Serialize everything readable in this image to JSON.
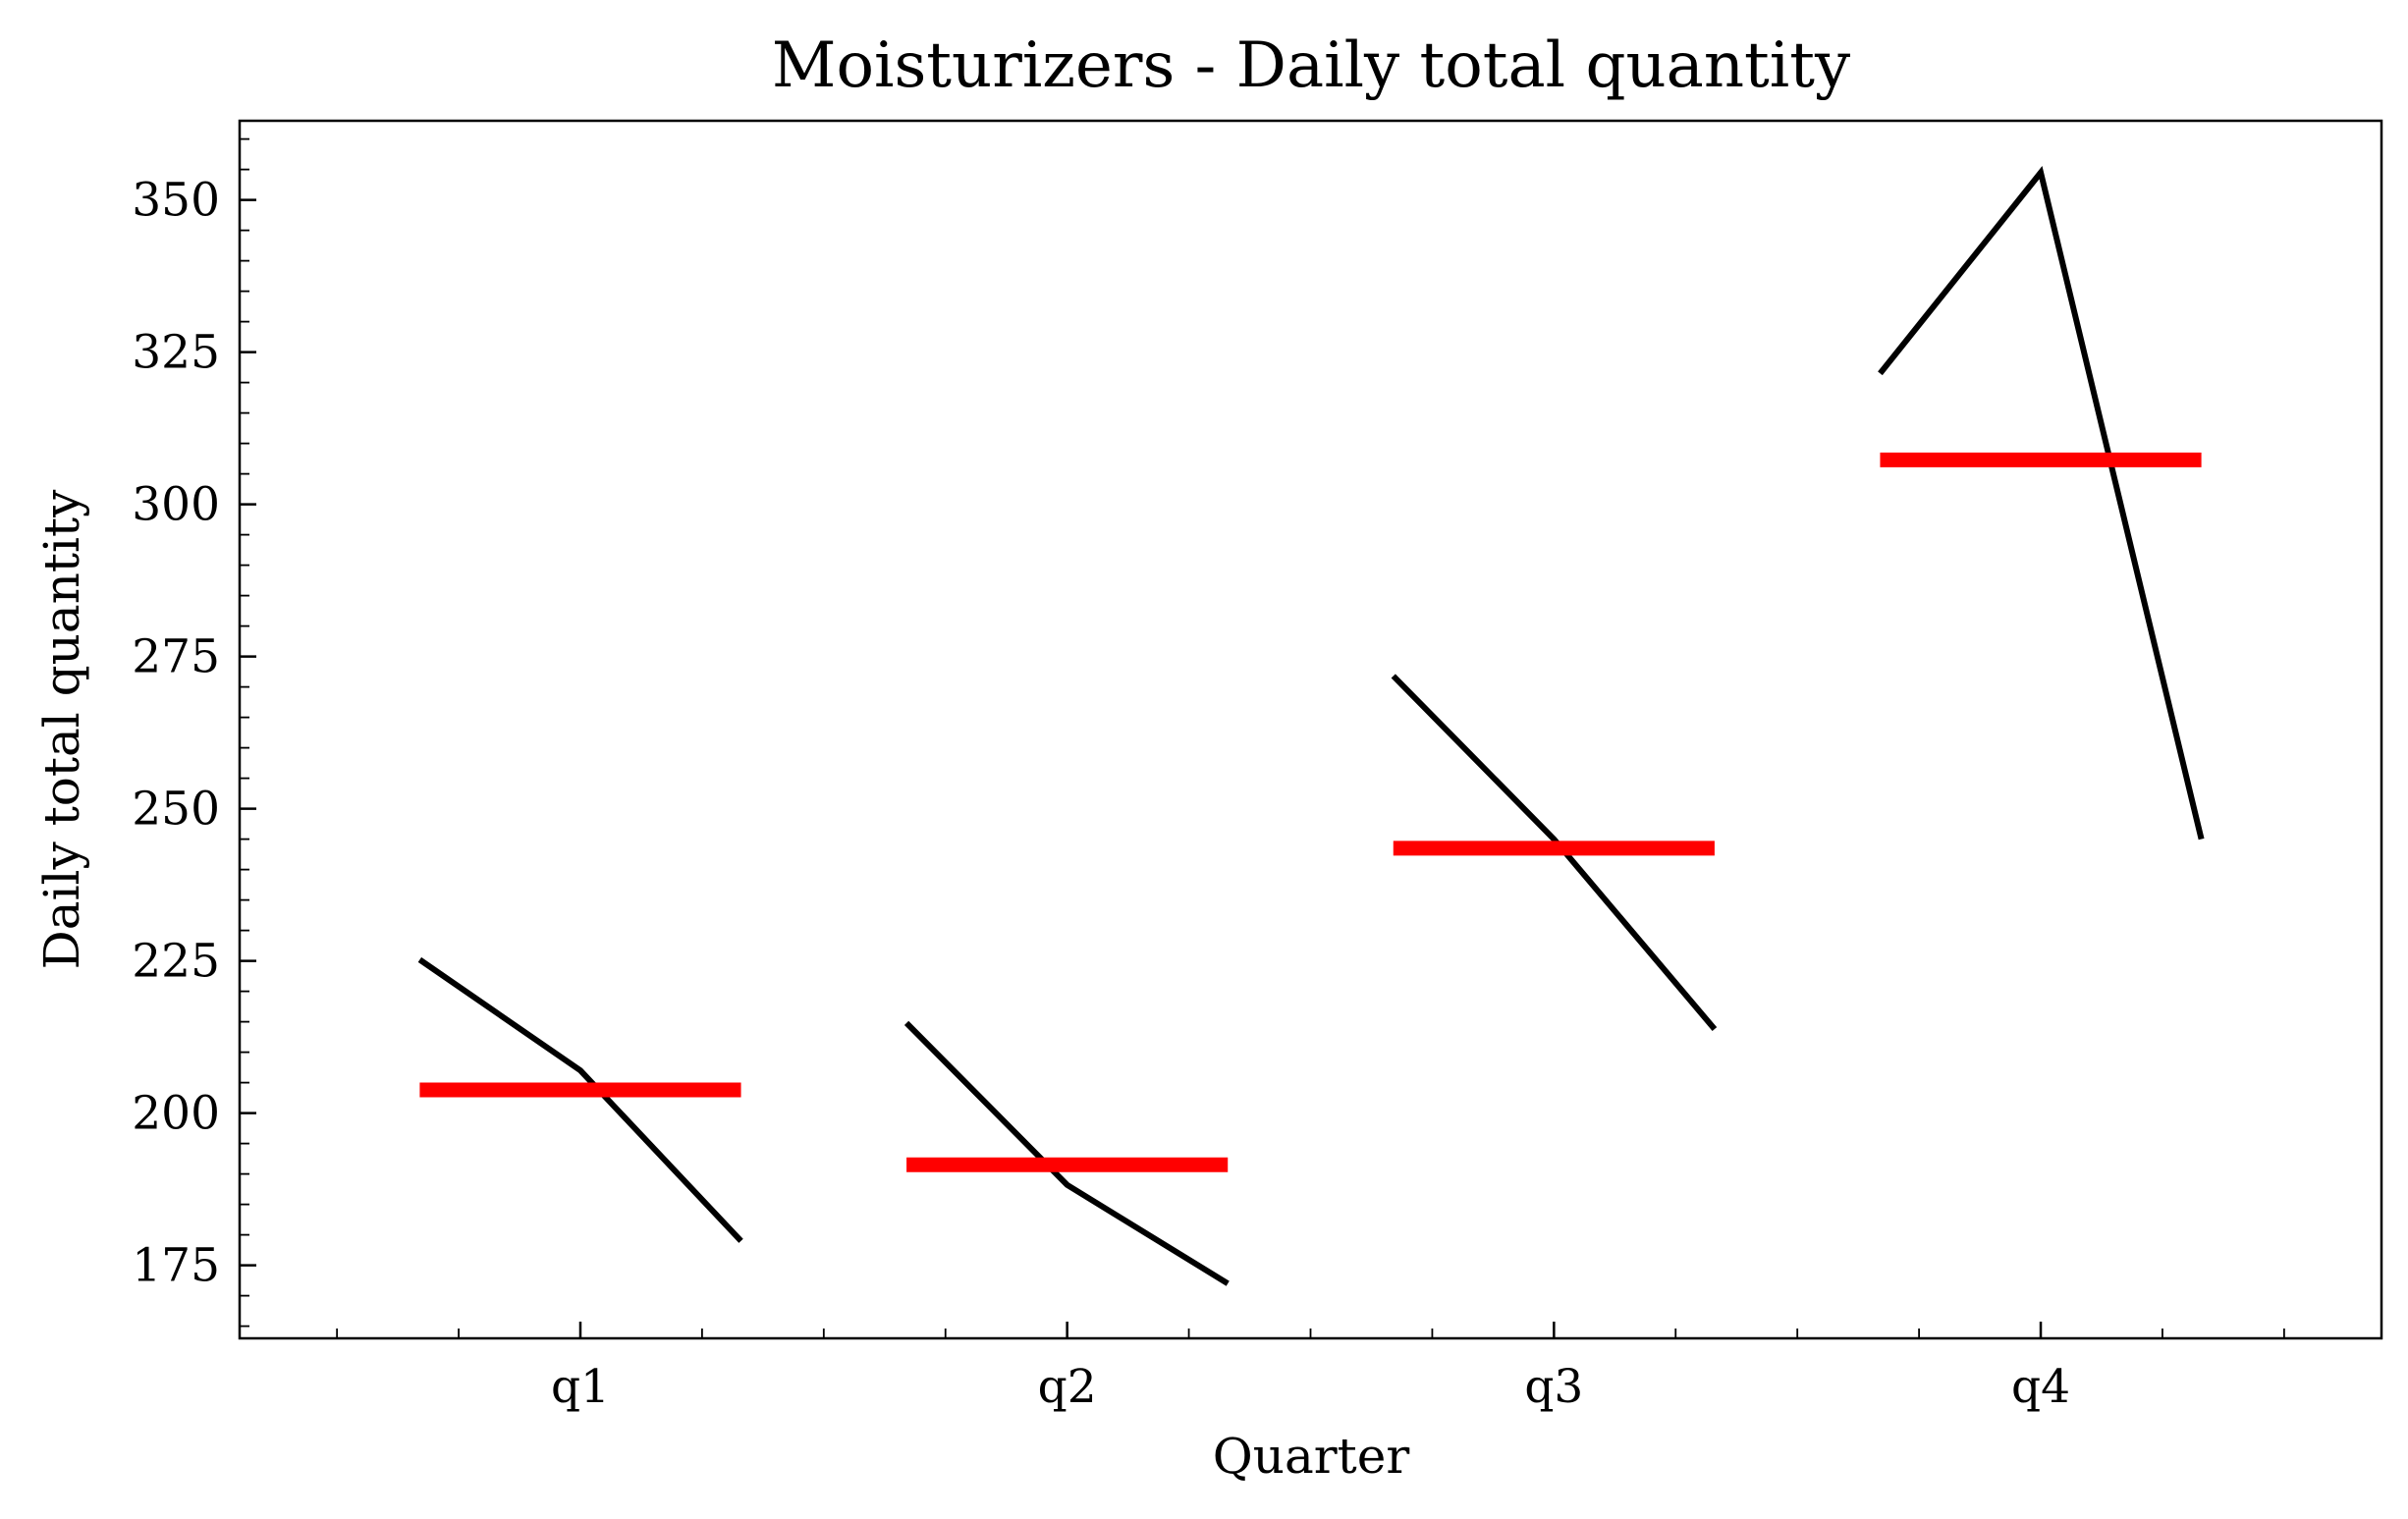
{
  "chart_data": {
    "type": "line",
    "title": "Moisturizers - Daily total quantity",
    "xlabel": "Quarter",
    "ylabel": "Daily total quantity",
    "categories": [
      "q1",
      "q2",
      "q3",
      "q4"
    ],
    "ylim": [
      163,
      363
    ],
    "yticks": [
      175,
      200,
      225,
      250,
      275,
      300,
      325,
      350
    ],
    "grid": false,
    "legend": "none",
    "series": [
      {
        "values_by_category": [
          [
            225.2,
            207,
            179
          ],
          [
            214.8,
            188.2,
            172
          ],
          [
            271.8,
            245,
            213.8
          ],
          [
            321.5,
            354.5,
            245
          ]
        ],
        "color": "#000000"
      },
      {
        "values": [
          203.8,
          191.5,
          243.5,
          307.3
        ],
        "color": "#ff0000"
      }
    ]
  }
}
